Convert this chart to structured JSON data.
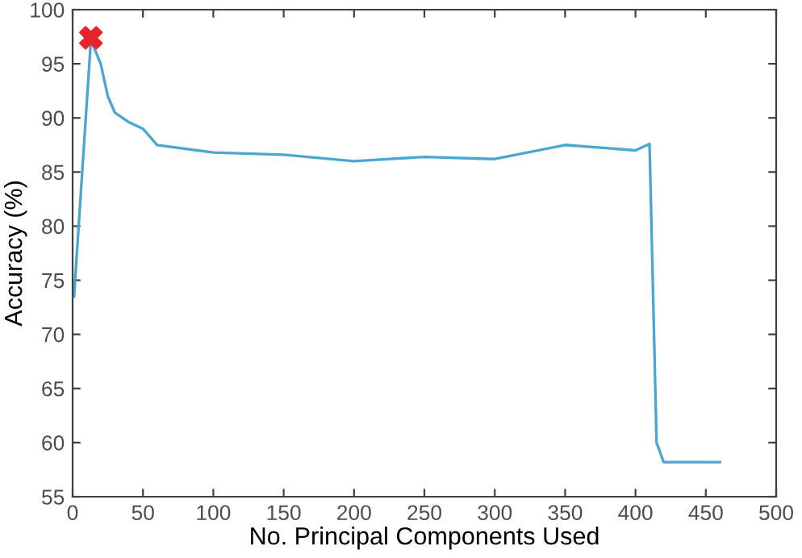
{
  "chart_data": {
    "type": "line",
    "xlabel": "No. Principal Components Used",
    "ylabel": "Accuracy (%)",
    "xlim": [
      0,
      500
    ],
    "ylim": [
      55,
      100
    ],
    "xticks": [
      0,
      50,
      100,
      150,
      200,
      250,
      300,
      350,
      400,
      450,
      500
    ],
    "yticks": [
      55,
      60,
      65,
      70,
      75,
      80,
      85,
      90,
      95,
      100
    ],
    "grid": false,
    "legend": false,
    "series": [
      {
        "color": "#4ba6d0",
        "marker": "none",
        "line_style": "solid",
        "x": [
          1,
          13,
          20,
          25,
          30,
          40,
          50,
          60,
          100,
          150,
          200,
          250,
          300,
          350,
          400,
          410,
          415,
          420,
          460
        ],
        "values": [
          73.5,
          97.2,
          95,
          92,
          90.5,
          89.6,
          89,
          87.5,
          86.8,
          86.6,
          86.0,
          86.4,
          86.2,
          87.5,
          87.0,
          87.6,
          60,
          58.2,
          58.2
        ]
      },
      {
        "type": "scatter",
        "color": "#e8232b",
        "marker": "cross",
        "x": [
          13
        ],
        "values": [
          97.4
        ]
      }
    ]
  }
}
